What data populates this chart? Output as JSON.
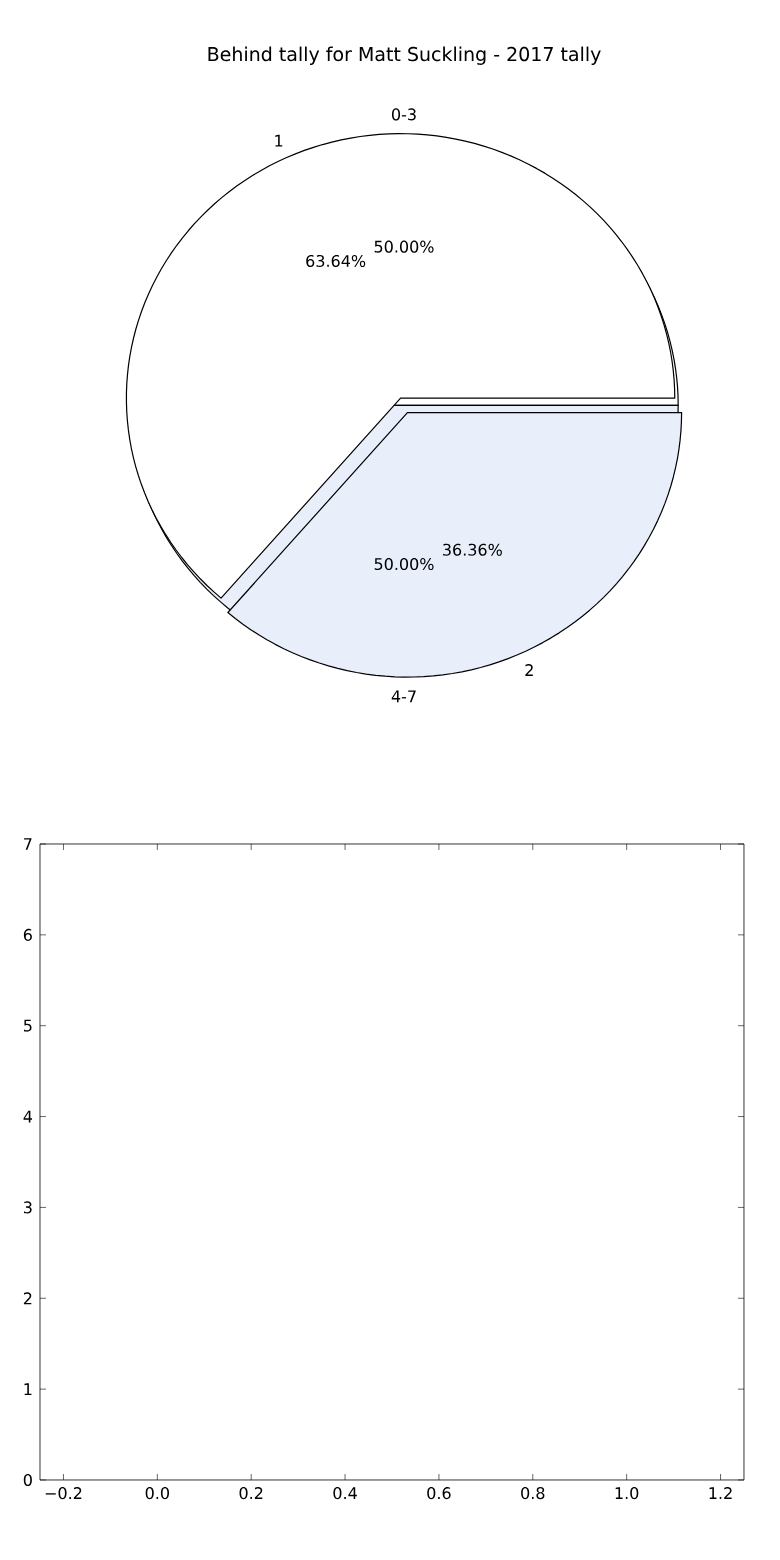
{
  "chart_data": [
    {
      "type": "pie",
      "title": "Behind tally for Matt Suckling - 2017 tally",
      "categories": [
        "0-3",
        "4-7"
      ],
      "values": [
        50,
        50
      ],
      "colors": [
        "#ffffff",
        "#e8effb"
      ],
      "value_labels": [
        "50.00%",
        "50.00%"
      ]
    },
    {
      "type": "pie",
      "categories": [
        "1",
        "2"
      ],
      "values": [
        63.64,
        36.36
      ],
      "colors": [
        "#ffffff",
        "#e8effb"
      ],
      "value_labels": [
        "63.64%",
        "36.36%"
      ]
    },
    {
      "type": "scatter",
      "xlim": [
        -0.25,
        1.25
      ],
      "ylim": [
        0,
        7
      ],
      "xticks": [
        {
          "value": -0.2,
          "label": "−0.2"
        },
        {
          "value": 0,
          "label": "0.0"
        },
        {
          "value": 0.2,
          "label": "0.2"
        },
        {
          "value": 0.4,
          "label": "0.4"
        },
        {
          "value": 0.6,
          "label": "0.6"
        },
        {
          "value": 0.8,
          "label": "0.8"
        },
        {
          "value": 1.0,
          "label": "1.0"
        },
        {
          "value": 1.2,
          "label": "1.2"
        }
      ],
      "yticks": [
        0,
        1,
        2,
        3,
        4,
        5,
        6,
        7
      ]
    }
  ]
}
